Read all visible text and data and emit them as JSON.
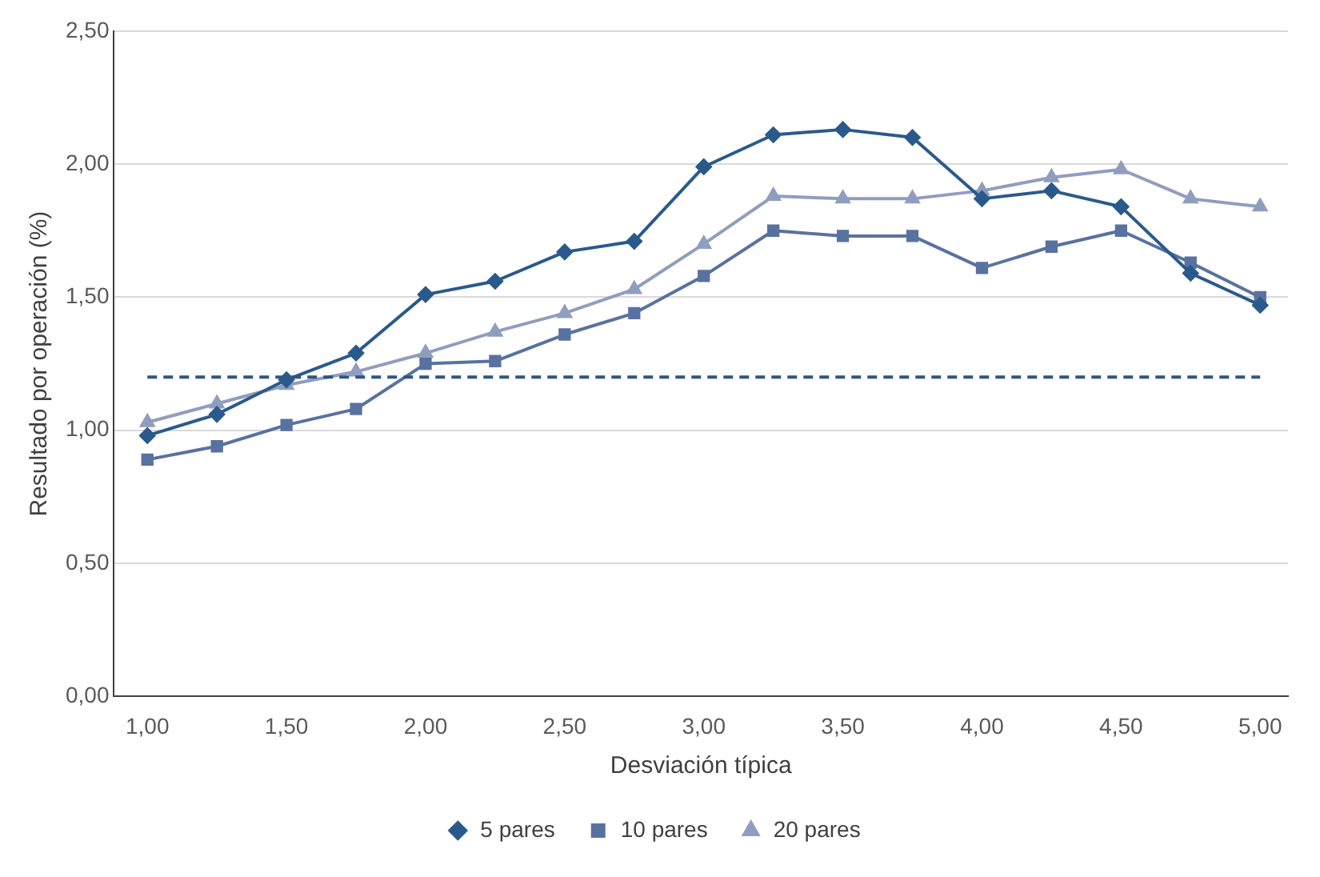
{
  "chart_data": {
    "type": "line",
    "xlabel": "Desviación típica",
    "ylabel": "Resultado por operación (%)",
    "x": [
      1,
      1.25,
      1.5,
      1.75,
      2,
      2.25,
      2.5,
      2.75,
      3,
      3.25,
      3.5,
      3.75,
      4,
      4.25,
      4.5,
      4.75,
      5
    ],
    "series": [
      {
        "name": "5 pares",
        "color": "#2a5a8c",
        "marker": "diamond",
        "values": [
          0.98,
          1.06,
          1.19,
          1.29,
          1.51,
          1.56,
          1.67,
          1.71,
          1.99,
          2.11,
          2.13,
          2.1,
          1.87,
          1.9,
          1.84,
          1.59,
          1.47
        ]
      },
      {
        "name": "10 pares",
        "color": "#5872a0",
        "marker": "square",
        "values": [
          0.89,
          0.94,
          1.02,
          1.08,
          1.25,
          1.26,
          1.36,
          1.44,
          1.58,
          1.75,
          1.73,
          1.73,
          1.61,
          1.69,
          1.75,
          1.63,
          1.5
        ]
      },
      {
        "name": "20 pares",
        "color": "#8f9dbf",
        "marker": "triangle",
        "values": [
          1.03,
          1.1,
          1.17,
          1.22,
          1.29,
          1.37,
          1.44,
          1.53,
          1.7,
          1.88,
          1.87,
          1.87,
          1.9,
          1.95,
          1.98,
          1.87,
          1.84
        ]
      }
    ],
    "xlim": [
      0.88,
      5.1
    ],
    "xticks": [
      {
        "value": 1,
        "label": "1,00"
      },
      {
        "value": 1.5,
        "label": "1,50"
      },
      {
        "value": 2,
        "label": "2,00"
      },
      {
        "value": 2.5,
        "label": "2,50"
      },
      {
        "value": 3,
        "label": "3,00"
      },
      {
        "value": 3.5,
        "label": "3,50"
      },
      {
        "value": 4,
        "label": "4,00"
      },
      {
        "value": 4.5,
        "label": "4,50"
      },
      {
        "value": 5,
        "label": "5,00"
      }
    ],
    "ylim": [
      0,
      2.5
    ],
    "yticks": [
      {
        "value": 0,
        "label": "0,00"
      },
      {
        "value": 0.5,
        "label": "0,50"
      },
      {
        "value": 1,
        "label": "1,00"
      },
      {
        "value": 1.5,
        "label": "1,50"
      },
      {
        "value": 2,
        "label": "2,00"
      },
      {
        "value": 2.5,
        "label": "2,50"
      }
    ],
    "ref_lines": [
      {
        "axis": "y",
        "value": 1.2,
        "color": "#2e5686",
        "line_style": "dashed"
      }
    ],
    "grid": "y",
    "legend": "bottom",
    "line_style": "solid"
  }
}
